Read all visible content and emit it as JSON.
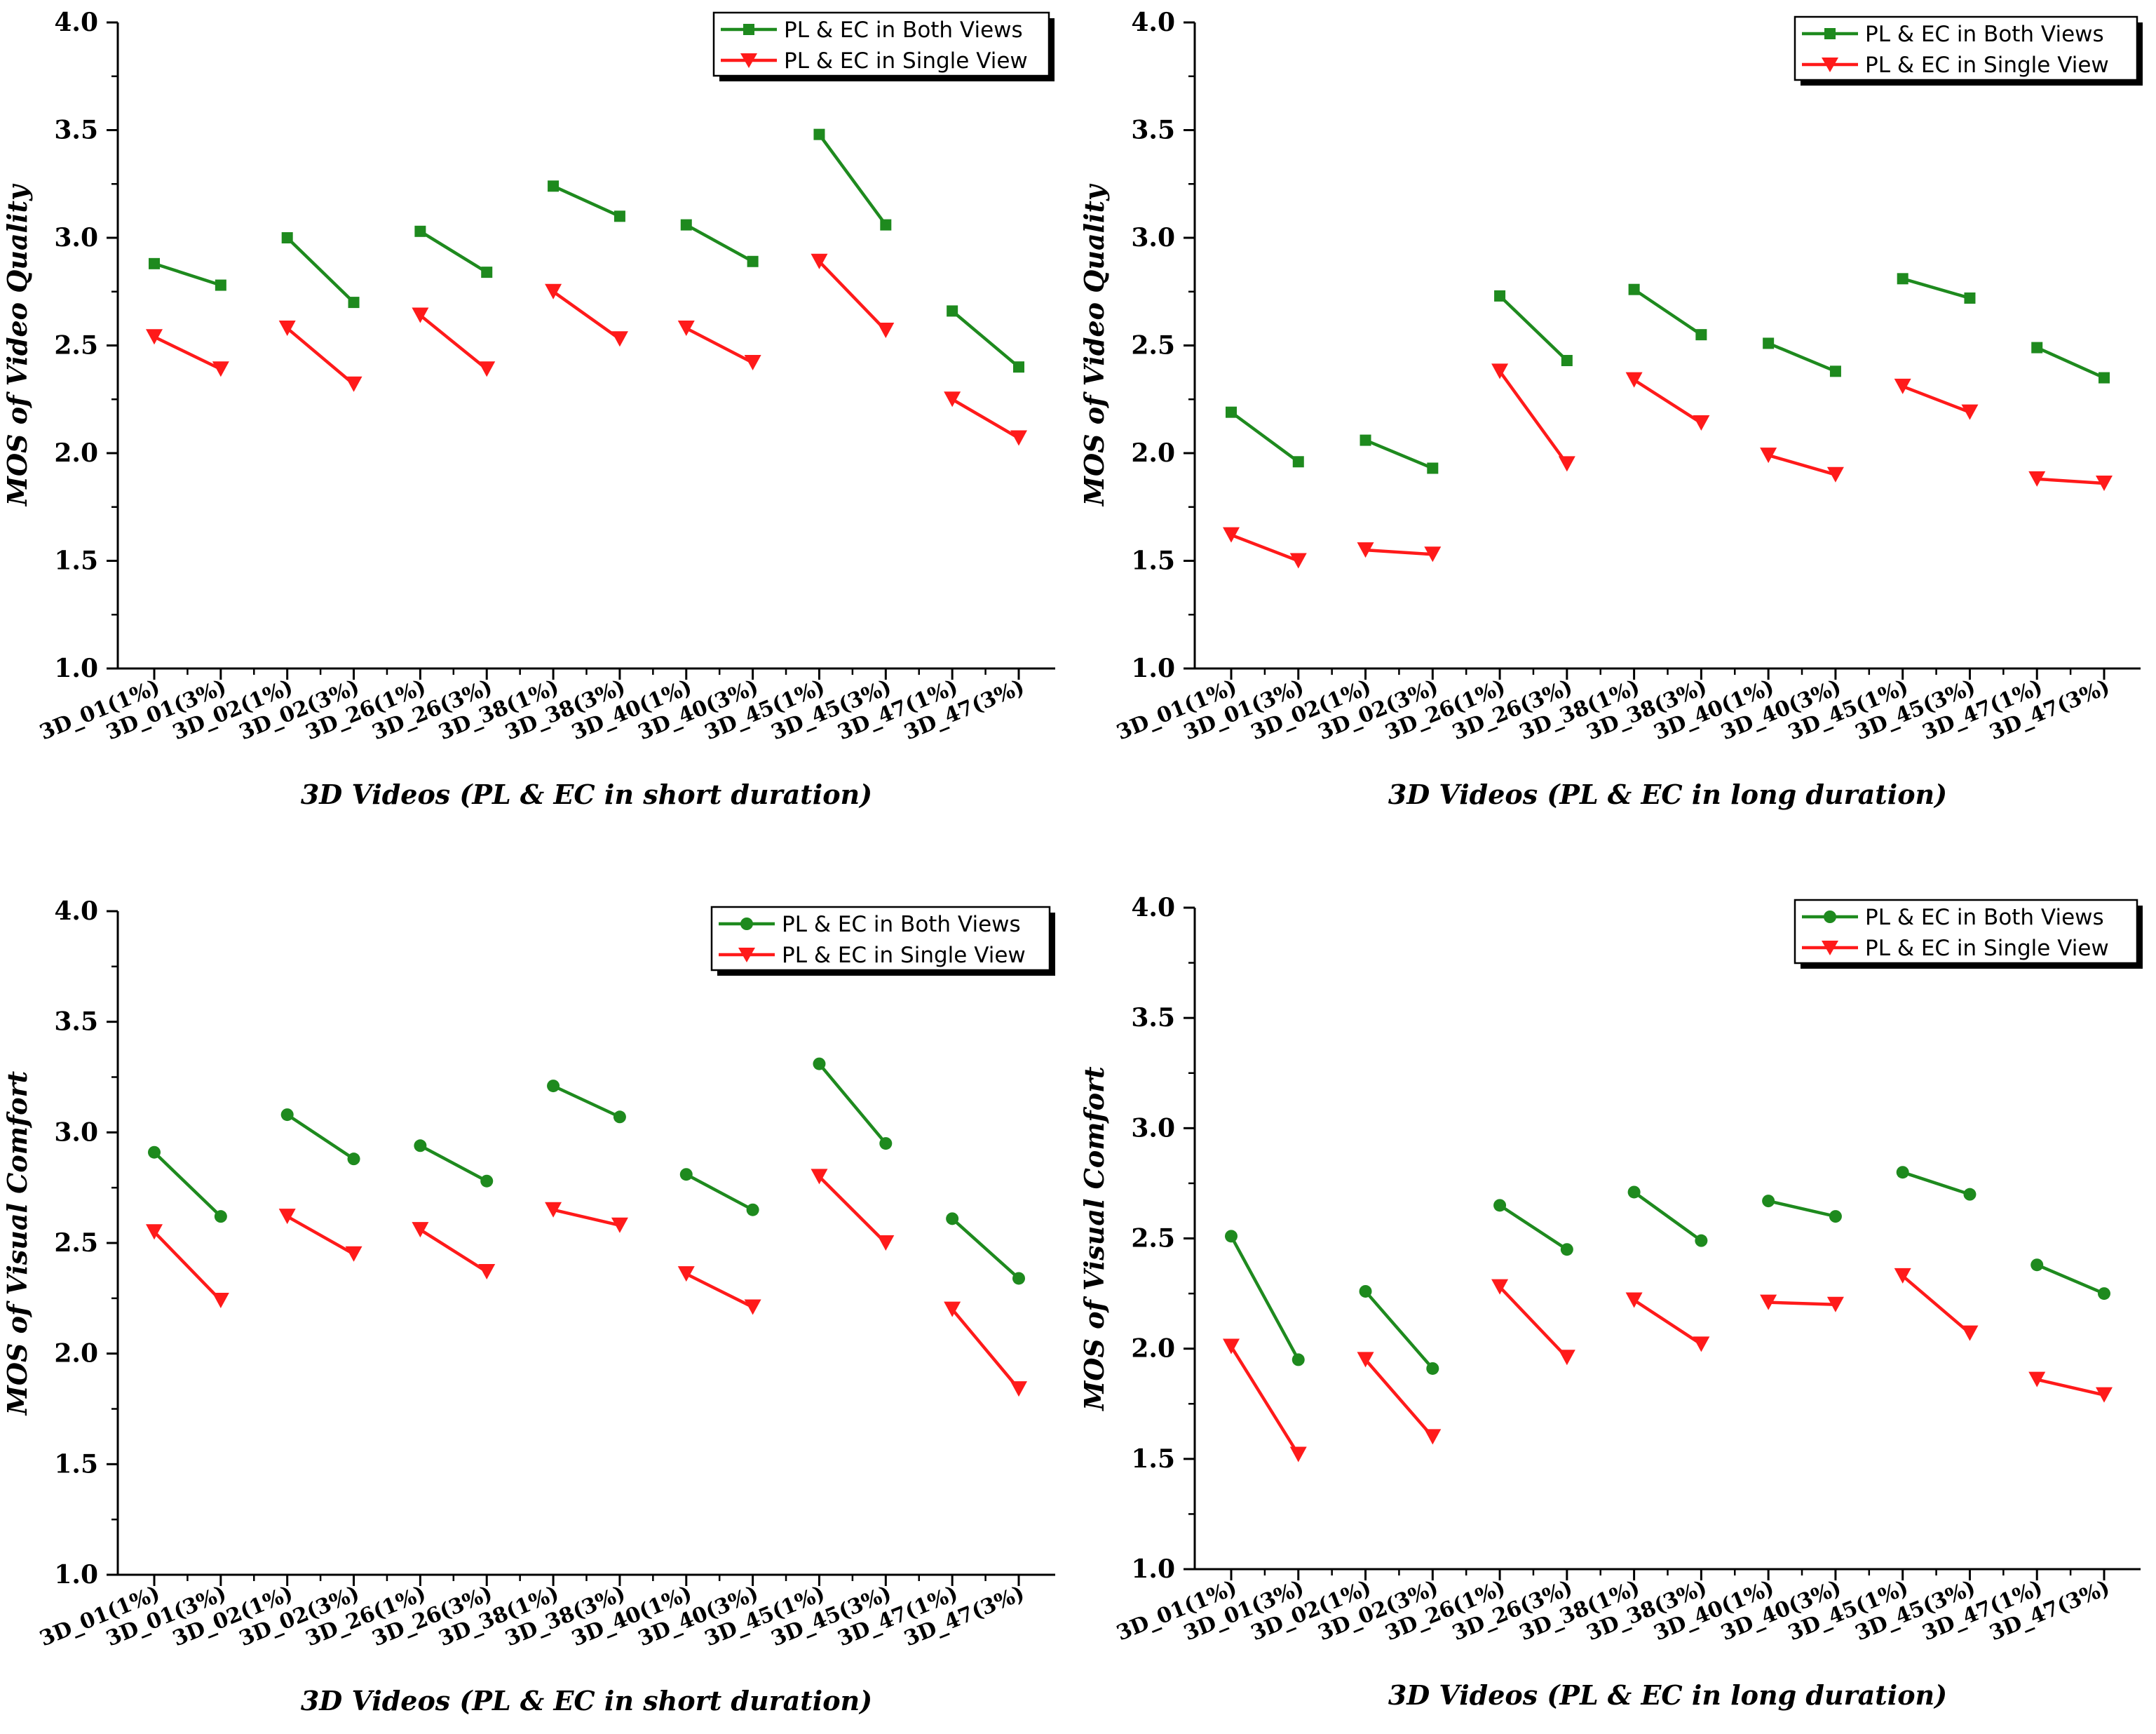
{
  "colors": {
    "both_views": "#1e8a1e",
    "single_view": "#ff1a1a",
    "axis": "#000000"
  },
  "legend_labels": {
    "both": "PL & EC in Both Views",
    "single": "PL & EC in Single View"
  },
  "chart_data": [
    {
      "type": "line",
      "title": "",
      "xlabel": "3D Videos (PL & EC in short duration)",
      "ylabel": "MOS of Video Quality",
      "ylim": [
        1.0,
        4.0
      ],
      "yticks": [
        "1.0",
        "1.5",
        "2.0",
        "2.5",
        "3.0",
        "3.5",
        "4.0"
      ],
      "categories": [
        "3D_01(1%)",
        "3D_01(3%)",
        "3D_02(1%)",
        "3D_02(3%)",
        "3D_26(1%)",
        "3D_26(3%)",
        "3D_38(1%)",
        "3D_38(3%)",
        "3D_40(1%)",
        "3D_40(3%)",
        "3D_45(1%)",
        "3D_45(3%)",
        "3D_47(1%)",
        "3D_47(3%)"
      ],
      "legend_position": "top-right",
      "series": [
        {
          "name": "PL & EC in Both Views",
          "marker": "square",
          "values": [
            2.88,
            2.78,
            3.0,
            2.7,
            3.03,
            2.84,
            3.24,
            3.1,
            3.06,
            2.89,
            3.48,
            3.06,
            2.66,
            2.4
          ]
        },
        {
          "name": "PL & EC in Single View",
          "marker": "triangle-down",
          "values": [
            2.54,
            2.39,
            2.58,
            2.32,
            2.64,
            2.39,
            2.75,
            2.53,
            2.58,
            2.42,
            2.89,
            2.57,
            2.25,
            2.07
          ]
        }
      ]
    },
    {
      "type": "line",
      "title": "",
      "xlabel": "3D Videos (PL & EC in long duration)",
      "ylabel": "MOS of Video Quality",
      "ylim": [
        1.0,
        4.0
      ],
      "yticks": [
        "1.0",
        "1.5",
        "2.0",
        "2.5",
        "3.0",
        "3.5",
        "4.0"
      ],
      "categories": [
        "3D_01(1%)",
        "3D_01(3%)",
        "3D_02(1%)",
        "3D_02(3%)",
        "3D_26(1%)",
        "3D_26(3%)",
        "3D_38(1%)",
        "3D_38(3%)",
        "3D_40(1%)",
        "3D_40(3%)",
        "3D_45(1%)",
        "3D_45(3%)",
        "3D_47(1%)",
        "3D_47(3%)"
      ],
      "legend_position": "top-right",
      "series": [
        {
          "name": "PL & EC in Both Views",
          "marker": "square",
          "values": [
            2.19,
            1.96,
            2.06,
            1.93,
            2.73,
            2.43,
            2.76,
            2.55,
            2.51,
            2.38,
            2.81,
            2.72,
            2.49,
            2.35
          ]
        },
        {
          "name": "PL & EC in Single View",
          "marker": "triangle-down",
          "values": [
            1.62,
            1.5,
            1.55,
            1.53,
            2.38,
            1.95,
            2.34,
            2.14,
            1.99,
            1.9,
            2.31,
            2.19,
            1.88,
            1.86
          ]
        }
      ]
    },
    {
      "type": "line",
      "title": "",
      "xlabel": "3D Videos (PL & EC in short duration)",
      "ylabel": "MOS of Visual Comfort",
      "ylim": [
        1.0,
        4.0
      ],
      "yticks": [
        "1.0",
        "1.5",
        "2.0",
        "2.5",
        "3.0",
        "3.5",
        "4.0"
      ],
      "categories": [
        "3D_01(1%)",
        "3D_01(3%)",
        "3D_02(1%)",
        "3D_02(3%)",
        "3D_26(1%)",
        "3D_26(3%)",
        "3D_38(1%)",
        "3D_38(3%)",
        "3D_40(1%)",
        "3D_40(3%)",
        "3D_45(1%)",
        "3D_45(3%)",
        "3D_47(1%)",
        "3D_47(3%)"
      ],
      "legend_position": "top-right",
      "series": [
        {
          "name": "PL & EC in Both Views",
          "marker": "circle",
          "values": [
            2.91,
            2.62,
            3.08,
            2.88,
            2.94,
            2.78,
            3.21,
            3.07,
            2.81,
            2.65,
            3.31,
            2.95,
            2.61,
            2.34
          ]
        },
        {
          "name": "PL & EC in Single View",
          "marker": "triangle-down",
          "values": [
            2.55,
            2.24,
            2.62,
            2.45,
            2.56,
            2.37,
            2.65,
            2.58,
            2.36,
            2.21,
            2.8,
            2.5,
            2.2,
            1.84
          ]
        }
      ]
    },
    {
      "type": "line",
      "title": "",
      "xlabel": "3D Videos (PL & EC in long duration)",
      "ylabel": "MOS of Visual Comfort",
      "ylim": [
        1.0,
        4.0
      ],
      "yticks": [
        "1.0",
        "1.5",
        "2.0",
        "2.5",
        "3.0",
        "3.5",
        "4.0"
      ],
      "categories": [
        "3D_01(1%)",
        "3D_01(3%)",
        "3D_02(1%)",
        "3D_02(3%)",
        "3D_26(1%)",
        "3D_26(3%)",
        "3D_38(1%)",
        "3D_38(3%)",
        "3D_40(1%)",
        "3D_40(3%)",
        "3D_45(1%)",
        "3D_45(3%)",
        "3D_47(1%)",
        "3D_47(3%)"
      ],
      "legend_position": "top-right",
      "series": [
        {
          "name": "PL & EC in Both Views",
          "marker": "circle",
          "values": [
            2.51,
            1.95,
            2.26,
            1.91,
            2.65,
            2.45,
            2.71,
            2.49,
            2.67,
            2.6,
            2.8,
            2.7,
            2.38,
            2.25
          ]
        },
        {
          "name": "PL & EC in Single View",
          "marker": "triangle-down",
          "values": [
            2.01,
            1.52,
            1.95,
            1.6,
            2.28,
            1.96,
            2.22,
            2.02,
            2.21,
            2.2,
            2.33,
            2.07,
            1.86,
            1.79
          ]
        }
      ]
    }
  ]
}
